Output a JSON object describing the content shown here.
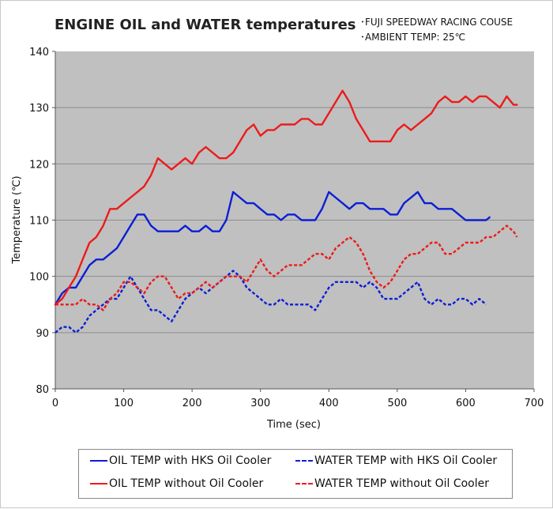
{
  "title": "ENGINE OIL and WATER temperatures",
  "notes": [
    "･FUJI SPEEDWAY RACING COUSE",
    "･AMBIENT TEMP: 25℃"
  ],
  "colors": {
    "plot_background": "#c0c0c0",
    "grid": "#8c8c8c",
    "blue": "#0b1ed6",
    "red": "#ee1a1a"
  },
  "chart_data": {
    "type": "line",
    "title": "ENGINE OIL and WATER temperatures",
    "xlabel": "Time (sec)",
    "ylabel": "Temperature (℃)",
    "xlim": [
      0,
      700
    ],
    "ylim": [
      80,
      140
    ],
    "xticks": [
      0,
      100,
      200,
      300,
      400,
      500,
      600,
      700
    ],
    "yticks": [
      80,
      90,
      100,
      110,
      120,
      130,
      140
    ],
    "grid": true,
    "legend_position": "bottom",
    "series": [
      {
        "name": "OIL TEMP with HKS Oil Cooler",
        "color": "#0b1ed6",
        "dashed": false,
        "x": [
          0,
          10,
          20,
          30,
          40,
          50,
          60,
          70,
          80,
          90,
          100,
          110,
          120,
          130,
          140,
          150,
          160,
          170,
          180,
          190,
          200,
          210,
          220,
          230,
          240,
          250,
          260,
          270,
          280,
          290,
          300,
          310,
          320,
          330,
          340,
          350,
          360,
          370,
          380,
          390,
          400,
          410,
          420,
          430,
          440,
          450,
          460,
          470,
          480,
          490,
          500,
          510,
          520,
          530,
          540,
          550,
          560,
          570,
          580,
          590,
          600,
          610,
          620,
          630,
          635
        ],
        "y": [
          95,
          97,
          98,
          98,
          100,
          102,
          103,
          103,
          104,
          105,
          107,
          109,
          111,
          111,
          109,
          108,
          108,
          108,
          108,
          109,
          108,
          108,
          109,
          108,
          108,
          110,
          115,
          114,
          113,
          113,
          112,
          111,
          111,
          110,
          111,
          111,
          110,
          110,
          110,
          112,
          115,
          114,
          113,
          112,
          113,
          113,
          112,
          112,
          112,
          111,
          111,
          113,
          114,
          115,
          113,
          113,
          112,
          112,
          112,
          111,
          110,
          110,
          110,
          110,
          110.5
        ]
      },
      {
        "name": "WATER TEMP with HKS Oil Cooler",
        "color": "#0b1ed6",
        "dashed": true,
        "x": [
          0,
          10,
          20,
          30,
          40,
          50,
          60,
          70,
          80,
          90,
          100,
          110,
          120,
          130,
          140,
          150,
          160,
          170,
          180,
          190,
          200,
          210,
          220,
          230,
          240,
          250,
          260,
          270,
          280,
          290,
          300,
          310,
          320,
          330,
          340,
          350,
          360,
          370,
          380,
          390,
          400,
          410,
          420,
          430,
          440,
          450,
          460,
          470,
          480,
          490,
          500,
          510,
          520,
          530,
          540,
          550,
          560,
          570,
          580,
          590,
          600,
          610,
          620,
          630
        ],
        "y": [
          90,
          91,
          91,
          90,
          91,
          93,
          94,
          95,
          96,
          96,
          98,
          100,
          98,
          96,
          94,
          94,
          93,
          92,
          94,
          96,
          97,
          98,
          97,
          98,
          99,
          100,
          101,
          100,
          98,
          97,
          96,
          95,
          95,
          96,
          95,
          95,
          95,
          95,
          94,
          96,
          98,
          99,
          99,
          99,
          99,
          98,
          99,
          98,
          96,
          96,
          96,
          97,
          98,
          99,
          96,
          95,
          96,
          95,
          95,
          96,
          96,
          95,
          96,
          95
        ]
      },
      {
        "name": "OIL TEMP without Oil Cooler",
        "color": "#ee1a1a",
        "dashed": false,
        "x": [
          0,
          10,
          20,
          30,
          40,
          50,
          60,
          70,
          80,
          90,
          100,
          110,
          120,
          130,
          140,
          150,
          160,
          170,
          180,
          190,
          200,
          210,
          220,
          230,
          240,
          250,
          260,
          270,
          280,
          290,
          300,
          310,
          320,
          330,
          340,
          350,
          360,
          370,
          380,
          390,
          400,
          410,
          420,
          430,
          440,
          450,
          460,
          470,
          480,
          490,
          500,
          510,
          520,
          530,
          540,
          550,
          560,
          570,
          580,
          590,
          600,
          610,
          620,
          630,
          640,
          650,
          660,
          670,
          675
        ],
        "y": [
          95,
          96,
          98,
          100,
          103,
          106,
          107,
          109,
          112,
          112,
          113,
          114,
          115,
          116,
          118,
          121,
          120,
          119,
          120,
          121,
          120,
          122,
          123,
          122,
          121,
          121,
          122,
          124,
          126,
          127,
          125,
          126,
          126,
          127,
          127,
          127,
          128,
          128,
          127,
          127,
          129,
          131,
          133,
          131,
          128,
          126,
          124,
          124,
          124,
          124,
          126,
          127,
          126,
          127,
          128,
          129,
          131,
          132,
          131,
          131,
          132,
          131,
          132,
          132,
          131,
          130,
          132,
          130.5,
          130.5
        ]
      },
      {
        "name": "WATER TEMP without Oil Cooler",
        "color": "#ee1a1a",
        "dashed": true,
        "x": [
          0,
          10,
          20,
          30,
          40,
          50,
          60,
          70,
          80,
          90,
          100,
          110,
          120,
          130,
          140,
          150,
          160,
          170,
          180,
          190,
          200,
          210,
          220,
          230,
          240,
          250,
          260,
          270,
          280,
          290,
          300,
          310,
          320,
          330,
          340,
          350,
          360,
          370,
          380,
          390,
          400,
          410,
          420,
          430,
          440,
          450,
          460,
          470,
          480,
          490,
          500,
          510,
          520,
          530,
          540,
          550,
          560,
          570,
          580,
          590,
          600,
          610,
          620,
          630,
          640,
          650,
          660,
          670,
          675
        ],
        "y": [
          95,
          95,
          95,
          95,
          96,
          95,
          95,
          94,
          96,
          97,
          99,
          99,
          98,
          97,
          99,
          100,
          100,
          98,
          96,
          97,
          97,
          98,
          99,
          98,
          99,
          100,
          100,
          100,
          99,
          101,
          103,
          101,
          100,
          101,
          102,
          102,
          102,
          103,
          104,
          104,
          103,
          105,
          106,
          107,
          106,
          104,
          101,
          99,
          98,
          99,
          101,
          103,
          104,
          104,
          105,
          106,
          106,
          104,
          104,
          105,
          106,
          106,
          106,
          107,
          107,
          108,
          109,
          108,
          107
        ]
      }
    ]
  }
}
